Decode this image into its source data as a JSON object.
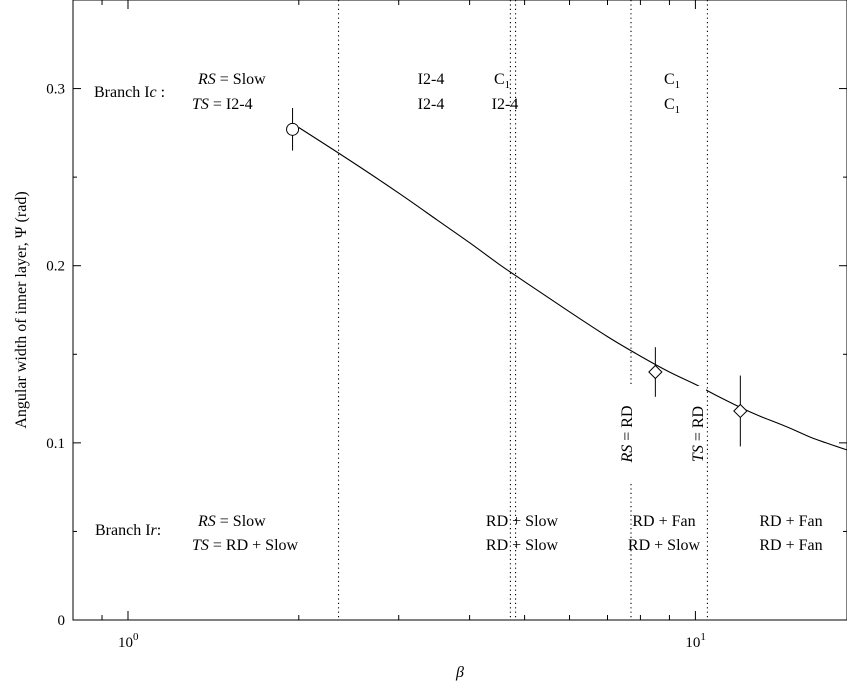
{
  "chart_data": {
    "type": "scatter",
    "title": "",
    "xlabel": "β",
    "ylabel": "Angular width of inner layer, Ψ (rad)",
    "xscale": "log",
    "xlim": [
      0.8,
      18.5
    ],
    "ylim": [
      0,
      0.35
    ],
    "grid": false,
    "x_ticks": [
      {
        "value": 1,
        "base": "10",
        "exp": "0"
      },
      {
        "value": 10,
        "base": "10",
        "exp": "1"
      }
    ],
    "y_ticks": [
      {
        "value": 0,
        "label": "0"
      },
      {
        "value": 0.1,
        "label": "0.1"
      },
      {
        "value": 0.2,
        "label": "0.2"
      },
      {
        "value": 0.3,
        "label": "0.3"
      }
    ],
    "curve": {
      "x": [
        2.0,
        2.5,
        3.0,
        3.5,
        4.0,
        4.5,
        5.0,
        6.0,
        7.0,
        8.0,
        9.0,
        10.0,
        11.0,
        12.0,
        13.0,
        14.0,
        15.0,
        16.0,
        17.0,
        18.5
      ],
      "y": [
        0.278,
        0.258,
        0.241,
        0.226,
        0.213,
        0.201,
        0.191,
        0.174,
        0.16,
        0.149,
        0.14,
        0.133,
        0.126,
        0.12,
        0.115,
        0.111,
        0.107,
        0.103,
        0.1,
        0.096
      ]
    },
    "points": [
      {
        "marker": "circle",
        "x": 1.95,
        "y": 0.277,
        "err": 0.012
      },
      {
        "marker": "diamond",
        "x": 8.5,
        "y": 0.14,
        "err": 0.014
      },
      {
        "marker": "diamond",
        "x": 12.0,
        "y": 0.118,
        "err": 0.02
      }
    ],
    "vlines": [
      {
        "x": 2.35
      },
      {
        "x": 4.72
      },
      {
        "x": 4.82
      },
      {
        "x": 7.7
      },
      {
        "x": 10.5
      }
    ],
    "annotations": {
      "branch_ic": {
        "prefix": "Branch I",
        "italic": "c",
        "suffix": " :"
      },
      "branch_ic_rs": {
        "name": "RS",
        "value": " = Slow"
      },
      "branch_ic_ts": {
        "name": "TS",
        "value": " = I2-4"
      },
      "branch_ir": {
        "prefix": "Branch I",
        "italic": "r",
        "suffix": ":"
      },
      "branch_ir_rs": {
        "name": "RS",
        "value": " = Slow"
      },
      "branch_ir_ts": {
        "name": "TS",
        "value": " = RD + Slow"
      },
      "c_text": "I2-4",
      "c_letter": "C",
      "c_sub": "1",
      "r_slow": "RD + Slow",
      "r_fan": "RD + Fan",
      "rs_rd": {
        "name": "RS",
        "value": " = RD"
      },
      "ts_rd": {
        "name": "TS",
        "value": " = RD"
      }
    }
  }
}
